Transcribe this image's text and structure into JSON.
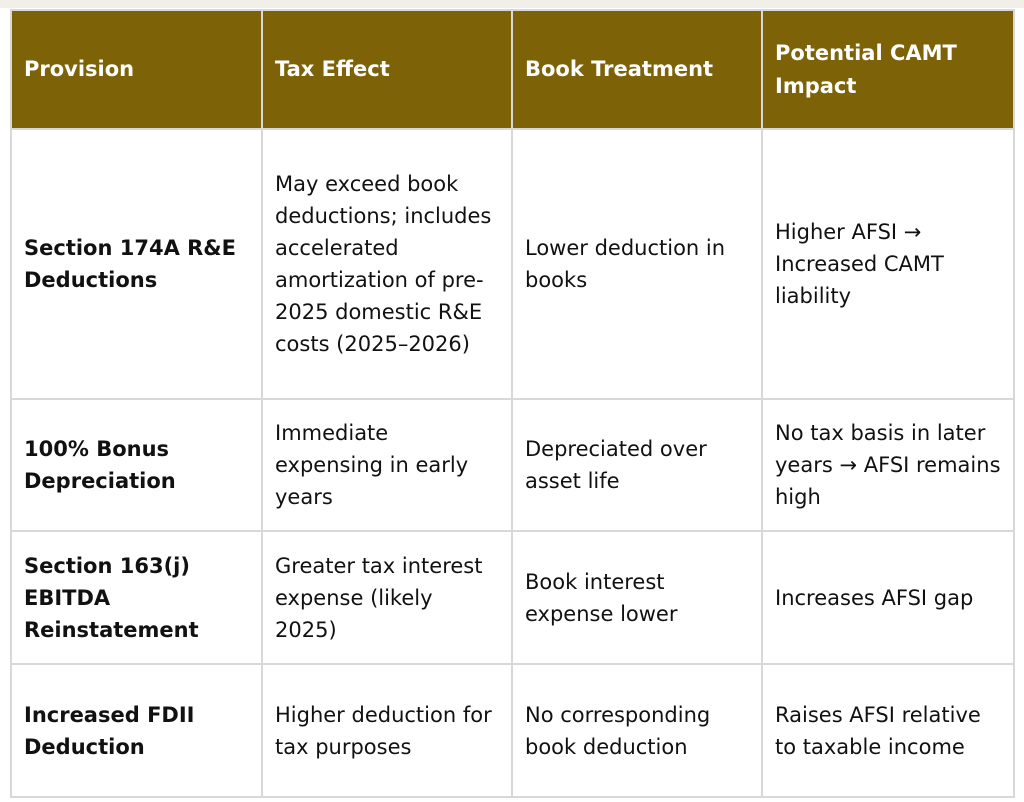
{
  "table": {
    "headers": {
      "provision": "Provision",
      "tax_effect": "Tax Effect",
      "book_treatment": "Book Treatment",
      "camt_impact": "Potential CAMT Impact"
    },
    "rows": [
      {
        "provision": "Section 174A R&E Deductions",
        "tax_effect": "May exceed book deductions; includes accelerated amortization of pre-2025 domestic R&E costs (2025–2026)",
        "book_treatment": "Lower deduction in books",
        "camt_impact": "Higher AFSI → Increased CAMT liability"
      },
      {
        "provision": "100% Bonus Depreciation",
        "tax_effect": "Immediate expensing in early years",
        "book_treatment": "Depreciated over asset life",
        "camt_impact": "No tax basis in later years → AFSI remains high"
      },
      {
        "provision": "Section 163(j) EBITDA Reinstatement",
        "tax_effect": "Greater tax interest expense (likely 2025)",
        "book_treatment": "Book interest expense lower",
        "camt_impact": "Increases AFSI gap"
      },
      {
        "provision": "Increased FDII Deduction",
        "tax_effect": "Higher deduction for tax purposes",
        "book_treatment": "No corresponding book deduction",
        "camt_impact": "Raises AFSI relative to taxable income"
      }
    ]
  },
  "colors": {
    "header_bg": "#7d6208",
    "header_text": "#ffffff",
    "grid": "#d8d8d8"
  }
}
